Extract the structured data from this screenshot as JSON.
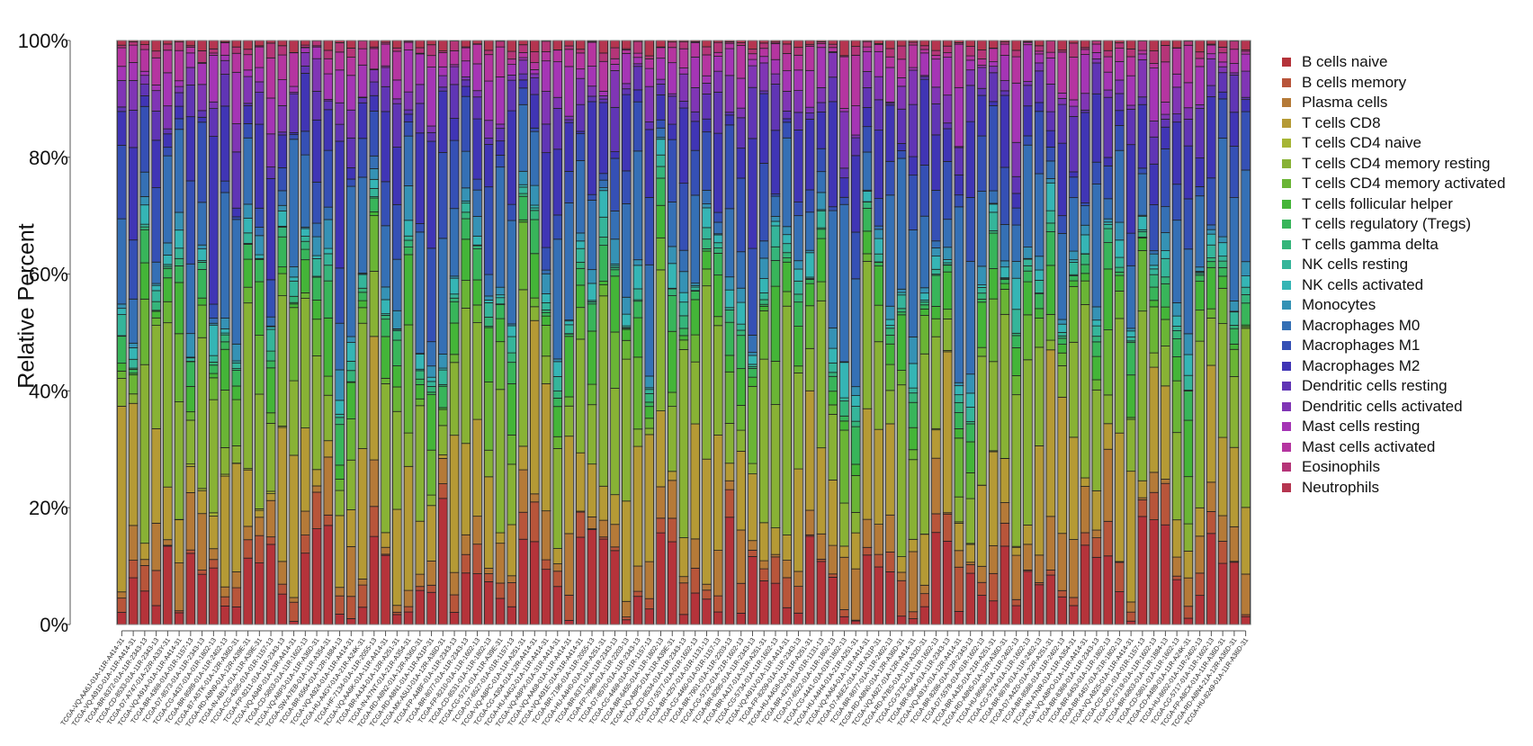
{
  "chart_data": {
    "type": "bar",
    "stacked": true,
    "normalized": true,
    "title": "",
    "xlabel": "",
    "ylabel": "Relative Percent",
    "ylim": [
      0,
      100
    ],
    "yticks": [
      "0%",
      "20%",
      "40%",
      "60%",
      "80%",
      "100%"
    ],
    "grid": false,
    "legend_position": "right",
    "series_names": [
      "B cells naive",
      "B cells memory",
      "Plasma cells",
      "T cells CD8",
      "T cells CD4 naive",
      "T cells CD4 memory resting",
      "T cells CD4 memory activated",
      "T cells follicular helper",
      "T cells regulatory (Tregs)",
      "T cells gamma delta",
      "NK cells resting",
      "NK cells activated",
      "Monocytes",
      "Macrophages M0",
      "Macrophages M1",
      "Macrophages M2",
      "Dendritic cells resting",
      "Dendritic cells activated",
      "Mast cells resting",
      "Mast cells activated",
      "Eosinophils",
      "Neutrophils"
    ],
    "colors": [
      "#b5333a",
      "#b8553a",
      "#b57a38",
      "#b59a35",
      "#a6b535",
      "#88b235",
      "#6ab535",
      "#44b538",
      "#38b55a",
      "#35b57a",
      "#35b59a",
      "#35b5b5",
      "#3592b5",
      "#3570b5",
      "#3550b5",
      "#4035b5",
      "#6035b5",
      "#8035b5",
      "#a535b5",
      "#b535a0",
      "#b53578",
      "#b53550"
    ],
    "categories": [
      "TCGA-VQ-AA6J-01A-11R-A414-31",
      "TCGA-VQ-A91D-01A-11R-A414-31",
      "TCGA-BR-8372-01A-11R-2343-13",
      "TCGA-CD-8533-01A-11R-2343-13",
      "TCGA-D7-A747-01A-22R-A33Y-31",
      "TCGA-VQ-A91A-01A-11R-A414-31",
      "TCGA-BR-4369-01A-01R-1157-13",
      "TCGA-D7-8573-01A-11R-2343-13",
      "TCGA-CG-4437-01A-01R-1802-13",
      "TCGA-BR-8589-01A-11R-2402-13",
      "TCGA-B7-A5TK-01A-12R-A36D-31",
      "TCGA-RD-A8N9-01A-12R-A39E-31",
      "TCGA-IN-AB1X-01A-11R-A39E-31",
      "TCGA-CG-4305-01A-01R-1157-13",
      "TCGA-FP-8211-01A-11R-2343-13",
      "TCGA-VQ-A94P-01A-13R-A414-31",
      "TCGA-CD-5803-01A-11R-1602-13",
      "TCGA-VQ-A8P3-01A-11R-A36D-31",
      "TCGA-SW-A7EB-01A-11R-A354-31",
      "TCGA-BR-6564-01A-12R-1884-13",
      "TCGA-VQ-A924-01A-11R-A414-31",
      "TCGA-HU-A4GY-01A-21R-A24K-31",
      "TCGA-HF-7134-01A-11R-2055-13",
      "TCGA-VQ-AA6K-01A-11R-A414-31",
      "TCGA-BR-A4J4-01A-12R-A251-31",
      "TCGA-IN-A7NT-01A-21R-A354-31",
      "TCGA-RD-A8N2-01A-12R-A36D-31",
      "TCGA-RD-A8N1-01A-11R-A31P-31",
      "TCGA-MX-A5UJ-01A-12R-A36D-31",
      "TCGA-FP-A4BF-01A-11R-2343-13",
      "TCGA-BR-8077-01A-11R-2343-13",
      "TCGA-FP-8210-01A-11R-1602-13",
      "TCGA-CD-8531-01A-11R-1802-13",
      "TCGA-CG-5721-01A-11R-A39E-31",
      "TCGA-D7-6527-01A-01R-1157-13",
      "TCGA-VQ-A8PC-01A-11R-A251-31",
      "TCGA-CG-4304-01A-12R-A414-31",
      "TCGA-HU-A4G2-01A-11R-A414-31",
      "TCGA-VQ-A8PX-01A-31R-A414-31",
      "TCGA-VQ-AA68-01A-11R-A414-31",
      "TCGA-VQ-A91E-01A-31R-A414-31",
      "TCGA-BR-7196-01A-11R-2055-13",
      "TCGA-HU-A4H0-01A-11R-A251-31",
      "TCGA-BR-8371-01A-11R-2343-13",
      "TCGA-FP-7998-01A-11R-2203-13",
      "TCGA-D7-8570-01A-11R-2343-13",
      "TCGA-CG-4469-01A-01R-1157-13",
      "TCGA-BR-6455-01A-11R-1802-13",
      "TCGA-VQ-A8P5-01A-11R-A39E-31",
      "TCGA-CD-8534-01A-11R-2343-13",
      "TCGA-D7-5577-01A-01R-1602-13",
      "TCGA-BR-4257-01A-01R-1131-13",
      "TCGA-CG-4460-01A-01R-1157-13",
      "TCGA-BR-7901-01A-11R-2203-13",
      "TCGA-CG-5722-01A-21R-1602-13",
      "TCGA-BR-8295-01A-11R-2343-13",
      "TCGA-BR-A4J7-01A-31R-A251-31",
      "TCGA-CG-5734-01A-11R-1602-13",
      "TCGA-VQ-A91V-01A-11R-A414-31",
      "TCGA-FP-8209-01A-11R-2343-13",
      "TCGA-HU-A4G8-01A-11R-A251-31",
      "TCGA-BR-4279-01A-01R-1131-13",
      "TCGA-D7-6522-01A-11R-1802-13",
      "TCGA-CG-4441-01A-01R-1802-13",
      "TCGA-HU-A4H4-01A-21R-A251-31",
      "TCGA-VQ-AA64-01A-11R-A414-31",
      "TCGA-D7-A6EZ-01A-11R-A31P-31",
      "TCGA-BR-8677-01A-11R-2402-13",
      "TCGA-RD-A8N0-01A-12R-A36D-31",
      "TCGA-VQ-A927-01A-12R-A414-31",
      "TCGA-RD-A7BS-01A-11R-A32D-31",
      "TCGA-CG-5732-01A-11R-1602-13",
      "TCGA-BR-8364-01A-11R-2343-13",
      "TCGA-VQ-A91X-01A-12R-A414-31",
      "TCGA-BR-8286-01A-12R-2343-13",
      "TCGA-D7-5578-01A-01R-1602-13",
      "TCGA-BR-A4J5-01A-21R-A251-31",
      "TCGA-RD-A8N5-01A-12R-A36D-31",
      "TCGA-HU-8608-01A-11R-2402-13",
      "TCGA-CG-5724-01A-11R-1602-13",
      "TCGA-BR-8678-01A-11R-2402-13",
      "TCGA-D7-A4Z0-01A-22R-A251-31",
      "TCGA-BR-8588-01A-11R-2402-13",
      "TCGA-IN-A7NR-01A-11R-A354-31",
      "TCGA-VQ-A8PO-01A-11R-A414-31",
      "TCGA-BR-8369-01A-11R-2343-13",
      "TCGA-BR-6453-01A-11R-1802-13",
      "TCGA-BR-6457-01A-21R-1802-13",
      "TCGA-VQ-A925-01A-11R-A414-31",
      "TCGA-CG-4301-01A-01R-1157-13",
      "TCGA-CG-5719-01A-11R-1602-13",
      "TCGA-BR-6803-01A-11R-1884-13",
      "TCGA-CD-5801-01A-11R-1602-13",
      "TCGA-CD-A489-01A-11R-A24K-31",
      "TCGA-HU-8602-01A-11R-2402-13",
      "TCGA-CG-5717-01A-11R-1602-13",
      "TCGA-FP-A8CX-01A-11R-A36D-31",
      "TCGA-RD-A8N4-21A-12R-A36D-31",
      "TCGA-HU-8249-01A-11R-A36D-31"
    ],
    "profile_note": "Bars are stacked fractions per sample; segments drawn bottom (B cells naive) to top (Neutrophils)."
  },
  "axis": {
    "y_label": "Relative Percent",
    "y_ticks": [
      "0%",
      "20%",
      "40%",
      "60%",
      "80%",
      "100%"
    ]
  },
  "legend": {
    "items": [
      {
        "label": "B cells naive",
        "color": "#b5333a"
      },
      {
        "label": "B cells memory",
        "color": "#b8553a"
      },
      {
        "label": "Plasma cells",
        "color": "#b57a38"
      },
      {
        "label": "T cells CD8",
        "color": "#b59a35"
      },
      {
        "label": "T cells CD4 naive",
        "color": "#a6b535"
      },
      {
        "label": "T cells CD4 memory resting",
        "color": "#88b235"
      },
      {
        "label": "T cells CD4 memory activated",
        "color": "#6ab535"
      },
      {
        "label": "T cells follicular helper",
        "color": "#44b538"
      },
      {
        "label": "T cells regulatory (Tregs)",
        "color": "#38b55a"
      },
      {
        "label": "T cells gamma delta",
        "color": "#35b57a"
      },
      {
        "label": "NK cells resting",
        "color": "#35b59a"
      },
      {
        "label": "NK cells activated",
        "color": "#35b5b5"
      },
      {
        "label": "Monocytes",
        "color": "#3592b5"
      },
      {
        "label": "Macrophages M0",
        "color": "#3570b5"
      },
      {
        "label": "Macrophages M1",
        "color": "#3550b5"
      },
      {
        "label": "Macrophages M2",
        "color": "#4035b5"
      },
      {
        "label": "Dendritic cells resting",
        "color": "#6035b5"
      },
      {
        "label": "Dendritic cells activated",
        "color": "#8035b5"
      },
      {
        "label": "Mast cells resting",
        "color": "#a535b5"
      },
      {
        "label": "Mast cells activated",
        "color": "#b535a0"
      },
      {
        "label": "Eosinophils",
        "color": "#b53578"
      },
      {
        "label": "Neutrophils",
        "color": "#b53550"
      }
    ]
  }
}
